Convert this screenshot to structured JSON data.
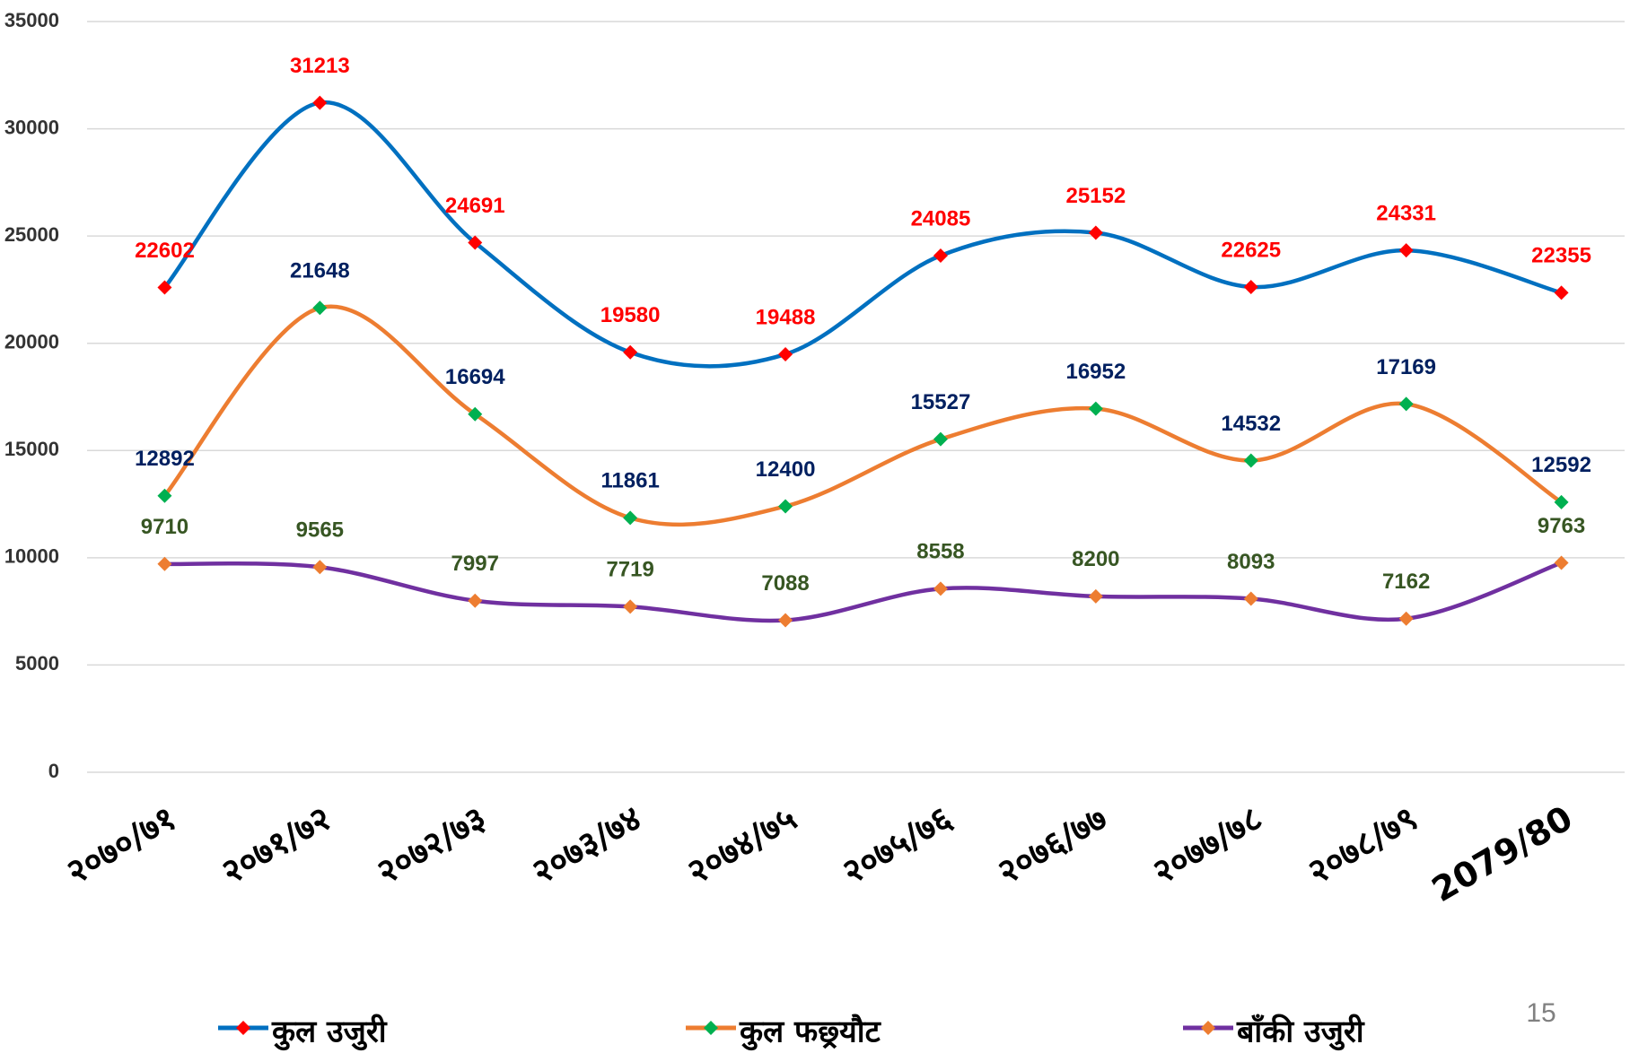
{
  "chart_data": {
    "type": "line",
    "categories": [
      "२०७०/७१",
      "२०७१/७२",
      "२०७२/७३",
      "२०७३/७४",
      "२०७४/७५",
      "२०७५/७६",
      "२०७६/७७",
      "२०७७/७८",
      "२०७८/७९",
      "2079/80"
    ],
    "series": [
      {
        "name": "कुल उजुरी",
        "color": "#0070c0",
        "marker_color": "#ff0000",
        "label_color": "#ff0000",
        "values": [
          22602,
          31213,
          24691,
          19580,
          19488,
          24085,
          25152,
          22625,
          24331,
          22355
        ]
      },
      {
        "name": "कुल फछ्र्यौट",
        "color": "#ed7d31",
        "marker_color": "#00b050",
        "label_color": "#002060",
        "values": [
          12892,
          21648,
          16694,
          11861,
          12400,
          15527,
          16952,
          14532,
          17169,
          12592
        ]
      },
      {
        "name": "बाँकी उजुरी",
        "color": "#7030a0",
        "marker_color": "#ed7d31",
        "label_color": "#375623",
        "values": [
          9710,
          9565,
          7997,
          7719,
          7088,
          8558,
          8200,
          8093,
          7162,
          9763
        ]
      }
    ],
    "ylim": [
      0,
      35000
    ],
    "yticks": [
      0,
      5000,
      10000,
      15000,
      20000,
      25000,
      30000,
      35000
    ],
    "grid": true,
    "legend": "bottom",
    "smooth": true,
    "page_number": "15"
  }
}
